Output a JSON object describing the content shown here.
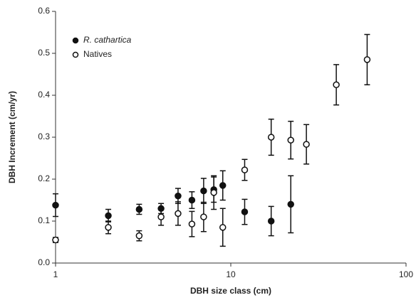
{
  "chart_data": {
    "type": "scatter",
    "xlabel": "DBH size class (cm)",
    "ylabel": "DBH Increment (cm/yr)",
    "xscale": "log",
    "xlim": [
      1,
      100
    ],
    "xticks": [
      1,
      10,
      100
    ],
    "ylim": [
      0,
      0.6
    ],
    "yticks": [
      {
        "value": 0,
        "label": "0.0"
      },
      0.1,
      0.2,
      0.3,
      0.4,
      0.5,
      0.6
    ],
    "legend": "upper left",
    "series": [
      {
        "name": "R. cathartica",
        "color": "#111111",
        "marker": "filled",
        "x": [
          1,
          2,
          3,
          4,
          5,
          6,
          7,
          8,
          9,
          12,
          17,
          22
        ],
        "values": [
          0.138,
          0.113,
          0.128,
          0.13,
          0.16,
          0.15,
          0.172,
          0.175,
          0.185,
          0.122,
          0.1,
          0.14
        ],
        "errors": [
          0.027,
          0.015,
          0.012,
          0.012,
          0.018,
          0.02,
          0.03,
          0.03,
          0.035,
          0.03,
          0.035,
          0.068
        ]
      },
      {
        "name": "Natives",
        "color": "#111111",
        "marker": "open",
        "x": [
          1,
          2,
          3,
          4,
          5,
          6,
          7,
          8,
          9,
          12,
          17,
          22,
          27,
          40,
          60
        ],
        "values": [
          0.055,
          0.085,
          0.065,
          0.11,
          0.118,
          0.093,
          0.11,
          0.168,
          0.085,
          0.222,
          0.3,
          0.293,
          0.283,
          0.425,
          0.485
        ],
        "errors": [
          0.006,
          0.015,
          0.012,
          0.02,
          0.028,
          0.03,
          0.035,
          0.04,
          0.045,
          0.025,
          0.043,
          0.045,
          0.047,
          0.048,
          0.06
        ]
      }
    ]
  }
}
